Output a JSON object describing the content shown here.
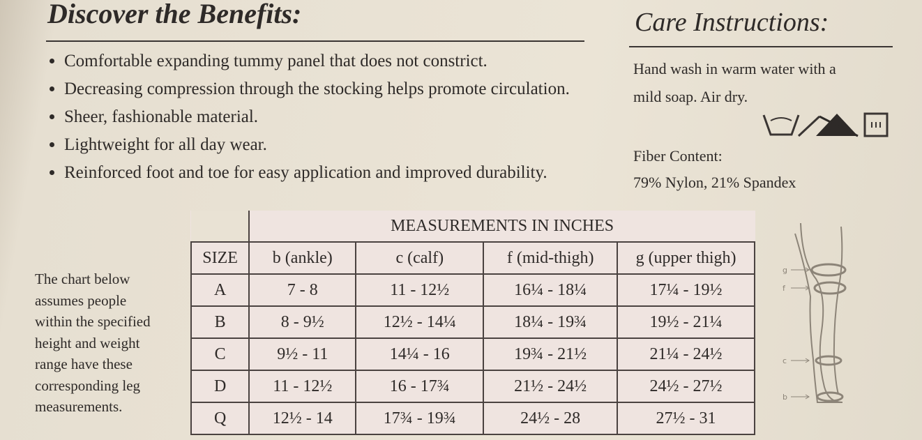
{
  "benefits": {
    "title": "Discover the Benefits:",
    "items": [
      "Comfortable expanding tummy panel that does not constrict.",
      "Decreasing compression through the stocking helps promote circulation.",
      "Sheer, fashionable material.",
      "Lightweight for all day wear.",
      "Reinforced foot and toe for easy application and improved durability."
    ]
  },
  "care": {
    "title": "Care Instructions:",
    "lines": [
      "Hand wash in warm water with a",
      "mild soap. Air dry."
    ],
    "fiber_label": "Fiber Content:",
    "fiber": "79% Nylon, 21% Spandex"
  },
  "note": {
    "lines": [
      "The chart below",
      "assumes people",
      "within the specified",
      "height and weight",
      "range have these",
      "corresponding leg",
      "measurements."
    ]
  },
  "table": {
    "group_header": "MEASUREMENTS IN INCHES",
    "columns": [
      "SIZE",
      "b (ankle)",
      "c (calf)",
      "f (mid-thigh)",
      "g (upper thigh)"
    ],
    "rows": [
      [
        "A",
        "7 - 8",
        "11 - 12½",
        "16¼ - 18¼",
        "17¼ - 19½"
      ],
      [
        "B",
        "8 - 9½",
        "12½ - 14¼",
        "18¼ - 19¾",
        "19½ - 21¼"
      ],
      [
        "C",
        "9½ - 11",
        "14¼ - 16",
        "19¾ - 21½",
        "21¼ - 24½"
      ],
      [
        "D",
        "11 - 12½",
        "16 - 17¾",
        "21½ - 24½",
        "24½ - 27½"
      ],
      [
        "Q",
        "12½ - 14",
        "17¾ - 19¾",
        "24½ - 28",
        "27½ - 31"
      ]
    ]
  },
  "diagram": {
    "labels": [
      "g",
      "f",
      "c",
      "b"
    ]
  }
}
